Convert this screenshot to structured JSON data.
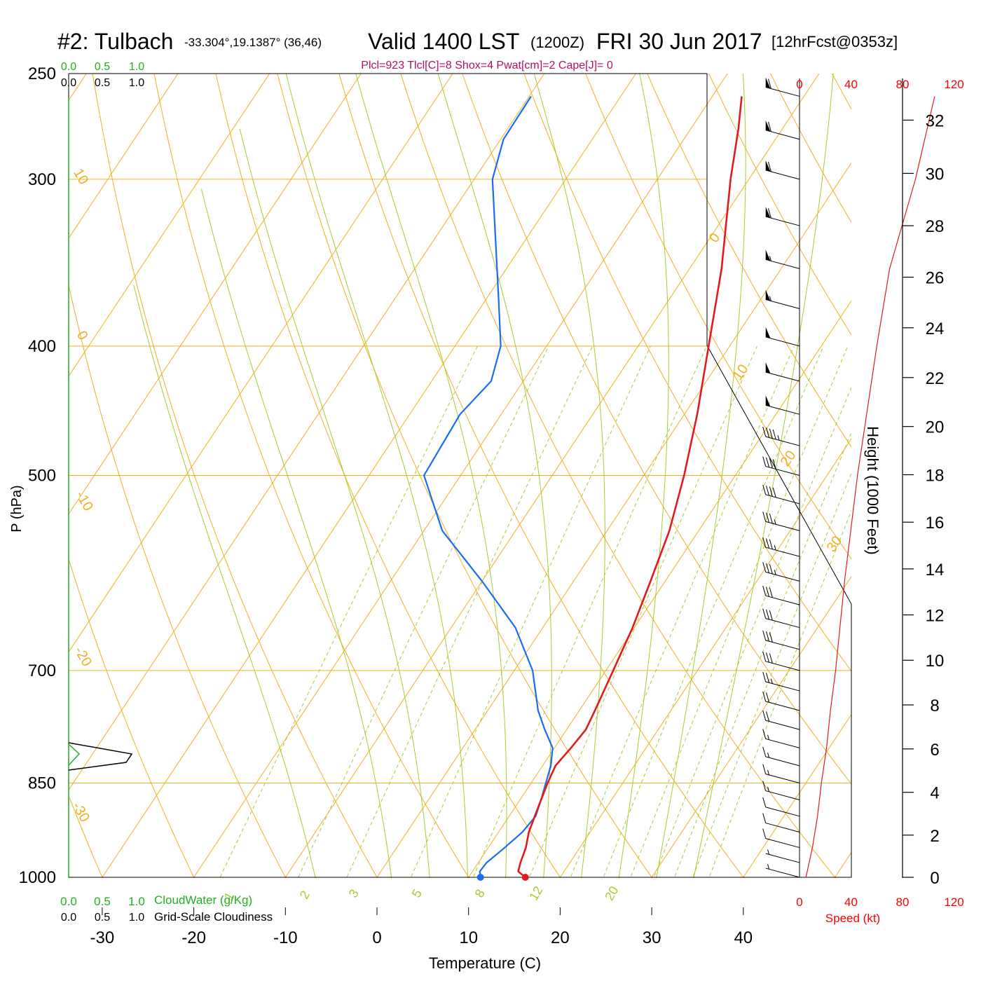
{
  "header": {
    "station": "#2: Tulbach",
    "coords": "-33.304°,19.1387° (36,46)",
    "valid_big": "Valid 1400 LST",
    "valid_small": "(1200Z)",
    "date": "FRI 30 Jun 2017",
    "forecast": "[12hrFcst@0353z]",
    "indices": "Plcl=923 Tlcl[C]=8 Shox=4 Pwat[cm]=2 Cape[J]= 0"
  },
  "colors": {
    "temperature": "#e31a1c",
    "dewpoint": "#1a6cf0",
    "isotherm": "#f0b020",
    "dry_adiabat": "#f0b020",
    "moist_adiabat": "#a8cc30",
    "mixing_ratio": "#a8cc30",
    "cloud_green": "#20b020",
    "red_axis": "#ff0000",
    "indices": "#b0106a"
  },
  "chart_data": {
    "type": "skew-t",
    "xlabel": "Temperature (C)",
    "ylabel": "P (hPa)",
    "right_label": "Height (1000 Feet)",
    "temp_ticks": [
      "-30",
      "-20",
      "-10",
      "0",
      "10",
      "20",
      "30",
      "40"
    ],
    "pressure_labels": [
      "250",
      "300",
      "400",
      "500",
      "700",
      "850",
      "1000"
    ],
    "height_ticks": [
      "0",
      "2",
      "4",
      "6",
      "8",
      "10",
      "12",
      "14",
      "16",
      "18",
      "20",
      "22",
      "24",
      "26",
      "28",
      "30",
      "32"
    ],
    "dry_adiabat_labels": [
      "10",
      "0",
      "-10",
      "-20",
      "-30",
      "0",
      "10",
      "20",
      "30"
    ],
    "mixing_ratio_labels": [
      "1",
      "2",
      "3",
      "5",
      "8",
      "12",
      "20"
    ],
    "cloud": {
      "top_scale_green": [
        "0.0",
        "0.5",
        "1.0"
      ],
      "top_scale_black": [
        "0.0",
        "0.5",
        "1.0"
      ],
      "bottom_scale_green": [
        "0.0",
        "0.5",
        "1.0"
      ],
      "bottom_scale_black": [
        "0.0",
        "0.5",
        "1.0"
      ],
      "water_label": "CloudWater (g/Kg)",
      "cloudiness_label": "Grid-Scale Cloudiness"
    },
    "speed": {
      "ticks_top": [
        "0",
        "40",
        "80",
        "120"
      ],
      "ticks_bottom": [
        "0",
        "40",
        "80",
        "120"
      ],
      "label": "Speed (kt)"
    },
    "temperature_profile": [
      [
        1000,
        16.2
      ],
      [
        990,
        15.0
      ],
      [
        975,
        14.6
      ],
      [
        950,
        14.1
      ],
      [
        925,
        13.3
      ],
      [
        900,
        12.8
      ],
      [
        875,
        12.3
      ],
      [
        850,
        11.8
      ],
      [
        825,
        11.4
      ],
      [
        800,
        11.8
      ],
      [
        775,
        12.1
      ],
      [
        750,
        11.7
      ],
      [
        700,
        10.8
      ],
      [
        650,
        9.8
      ],
      [
        600,
        8.4
      ],
      [
        550,
        6.8
      ],
      [
        500,
        4.4
      ],
      [
        450,
        1.4
      ],
      [
        400,
        -2.3
      ],
      [
        350,
        -6.5
      ],
      [
        300,
        -12.0
      ],
      [
        275,
        -14.8
      ],
      [
        260,
        -16.8
      ]
    ],
    "dewpoint_profile": [
      [
        1000,
        11.3
      ],
      [
        990,
        10.8
      ],
      [
        975,
        10.9
      ],
      [
        950,
        11.8
      ],
      [
        925,
        12.6
      ],
      [
        900,
        12.9
      ],
      [
        875,
        12.3
      ],
      [
        850,
        11.6
      ],
      [
        825,
        10.9
      ],
      [
        800,
        9.8
      ],
      [
        775,
        7.6
      ],
      [
        750,
        5.5
      ],
      [
        700,
        2.0
      ],
      [
        650,
        -3.0
      ],
      [
        600,
        -10.0
      ],
      [
        550,
        -18.0
      ],
      [
        500,
        -24.0
      ],
      [
        450,
        -24.5
      ],
      [
        425,
        -23.5
      ],
      [
        400,
        -25.0
      ],
      [
        370,
        -28.5
      ],
      [
        300,
        -38.0
      ],
      [
        280,
        -39.7
      ],
      [
        260,
        -39.8
      ]
    ],
    "wind_profile_kt": [
      [
        1000,
        5
      ],
      [
        975,
        6
      ],
      [
        950,
        8
      ],
      [
        925,
        10
      ],
      [
        900,
        12
      ],
      [
        875,
        14
      ],
      [
        850,
        15
      ],
      [
        825,
        15
      ],
      [
        800,
        17
      ],
      [
        775,
        20
      ],
      [
        750,
        22
      ],
      [
        725,
        25
      ],
      [
        700,
        28
      ],
      [
        675,
        30
      ],
      [
        650,
        30
      ],
      [
        625,
        32
      ],
      [
        600,
        33
      ],
      [
        575,
        35
      ],
      [
        550,
        36
      ],
      [
        525,
        38
      ],
      [
        500,
        40
      ],
      [
        475,
        45
      ],
      [
        450,
        50
      ],
      [
        425,
        50
      ],
      [
        400,
        50
      ],
      [
        375,
        55
      ],
      [
        350,
        55
      ],
      [
        325,
        60
      ],
      [
        300,
        60
      ],
      [
        280,
        60
      ],
      [
        260,
        60
      ]
    ],
    "speed_profile_kt": [
      [
        1000,
        5
      ],
      [
        950,
        10
      ],
      [
        900,
        14
      ],
      [
        850,
        17
      ],
      [
        800,
        21
      ],
      [
        750,
        24
      ],
      [
        700,
        28
      ],
      [
        600,
        35
      ],
      [
        500,
        45
      ],
      [
        400,
        60
      ],
      [
        350,
        70
      ],
      [
        300,
        90
      ],
      [
        260,
        105
      ]
    ]
  }
}
